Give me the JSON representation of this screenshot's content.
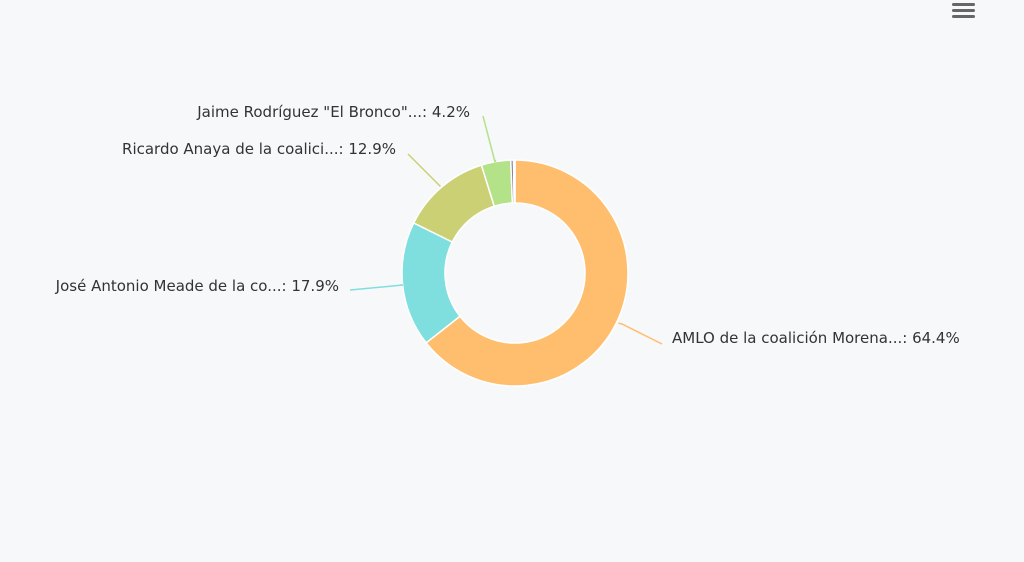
{
  "chart_data": {
    "type": "pie",
    "donut": true,
    "title": "",
    "legend": "none",
    "slices": [
      {
        "label": "AMLO de la coalición Morena...",
        "value": 64.4,
        "color": "#ffbe6e"
      },
      {
        "label": "José Antonio Meade de la co...",
        "value": 17.9,
        "color": "#7fdfde"
      },
      {
        "label": "Ricardo Anaya de la coalici...",
        "value": 12.9,
        "color": "#cbd074"
      },
      {
        "label": "Jaime Rodríguez \"El Bronco\"...",
        "value": 4.2,
        "color": "#b3e289"
      },
      {
        "label": "",
        "value": 0.4,
        "color": "#8a7fa0"
      },
      {
        "label": "",
        "value": 0.2,
        "color": "#c79bb5"
      }
    ],
    "label_format": "{label}: {value}%"
  },
  "toolbar": {
    "menu_icon": "hamburger-menu-icon"
  }
}
